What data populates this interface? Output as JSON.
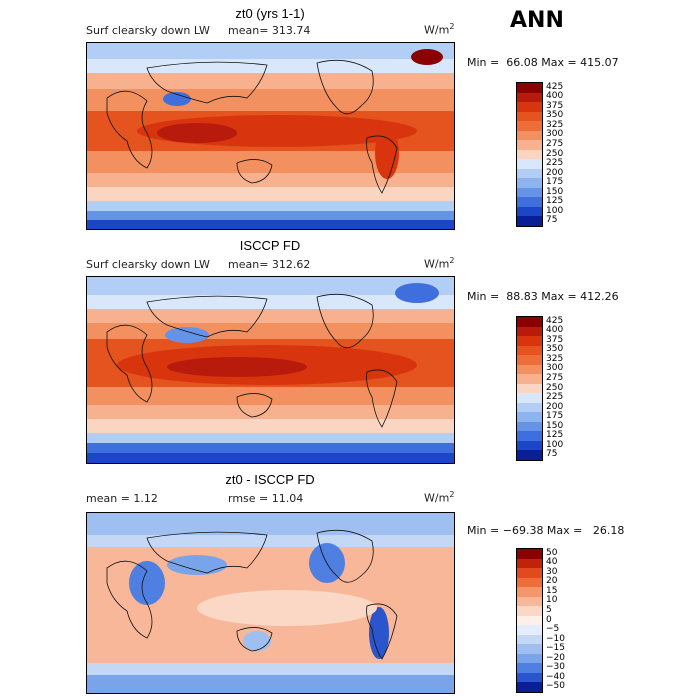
{
  "title": "ANN",
  "panels": [
    {
      "title": "zt0 (yrs 1-1)",
      "label_left": "Surf clearsky down LW",
      "stat1": "mean= 313.74",
      "units_base": "W/m",
      "units_exp": "2",
      "minmax": "Min =  66.08 Max = 415.07",
      "colorbar": {
        "labels": [
          "425",
          "400",
          "375",
          "350",
          "325",
          "300",
          "275",
          "250",
          "225",
          "200",
          "175",
          "150",
          "125",
          "100",
          "75"
        ],
        "colors": [
          "#8b0000",
          "#b81b0b",
          "#d8350e",
          "#e5531e",
          "#ee6e3a",
          "#f3905f",
          "#f7b18e",
          "#fad6c2",
          "#d9e7fa",
          "#b3cef5",
          "#8db4ef",
          "#6593e8",
          "#3e6fdc",
          "#1c46c8",
          "#0a1f96"
        ]
      }
    },
    {
      "title": "ISCCP FD",
      "label_left": "Surf clearsky down LW",
      "stat1": "mean= 312.62",
      "units_base": "W/m",
      "units_exp": "2",
      "minmax": "Min =  88.83 Max = 412.26",
      "colorbar": {
        "labels": [
          "425",
          "400",
          "375",
          "350",
          "325",
          "300",
          "275",
          "250",
          "225",
          "200",
          "175",
          "150",
          "125",
          "100",
          "75"
        ],
        "colors": [
          "#8b0000",
          "#b81b0b",
          "#d8350e",
          "#e5531e",
          "#ee6e3a",
          "#f3905f",
          "#f7b18e",
          "#fad6c2",
          "#d9e7fa",
          "#b3cef5",
          "#8db4ef",
          "#6593e8",
          "#3e6fdc",
          "#1c46c8",
          "#0a1f96"
        ]
      }
    },
    {
      "title": "zt0 - ISCCP FD",
      "label_left": "mean =    1.12",
      "stat1": "rmse =   11.04",
      "units_base": "W/m",
      "units_exp": "2",
      "minmax": "Min = −69.38 Max =   26.18",
      "colorbar": {
        "labels": [
          "50",
          "40",
          "30",
          "20",
          "15",
          "10",
          "5",
          "0",
          "−5",
          "−10",
          "−15",
          "−20",
          "−30",
          "−40",
          "−50"
        ],
        "colors": [
          "#8b0000",
          "#c0220b",
          "#e04a1e",
          "#ee6e3a",
          "#f4956a",
          "#f8b798",
          "#fbd7c5",
          "#fdf0e8",
          "#e3edfb",
          "#c4d8f6",
          "#9fbff1",
          "#7aa4ea",
          "#4f7fe0",
          "#2a55cc",
          "#0a1f96"
        ]
      }
    }
  ]
}
